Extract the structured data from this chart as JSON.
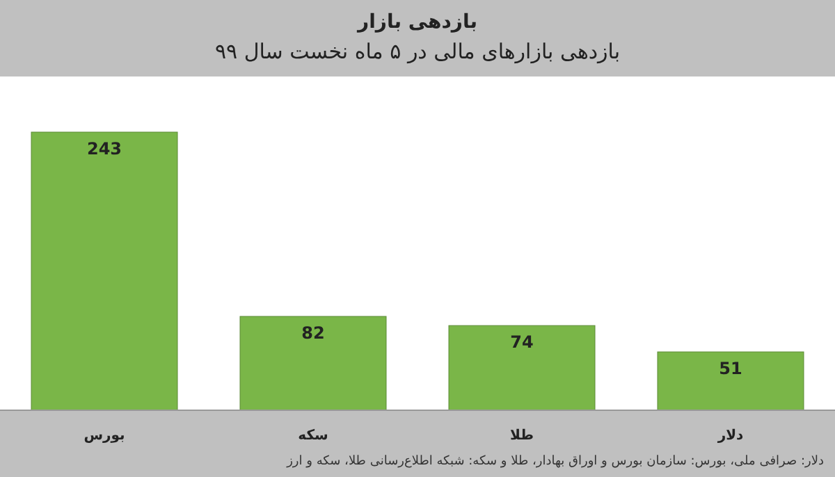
{
  "chart_data": {
    "type": "bar",
    "title": "بازدهی بازار",
    "subtitle": "بازدهی بازارهای مالی در ۵ ماه نخست سال ۹۹",
    "categories": [
      "بورس",
      "سکه",
      "طلا",
      "دلار"
    ],
    "values": [
      243,
      82,
      74,
      51
    ],
    "color": "#7ab648",
    "data_labels": true,
    "annotations": [
      "دلار: صرافی ملی، بورس: سازمان بورس و اوراق بهادار، طلا و سکه: شبکه اطلاع‌رسانی طلا، سکه و ارز"
    ]
  }
}
